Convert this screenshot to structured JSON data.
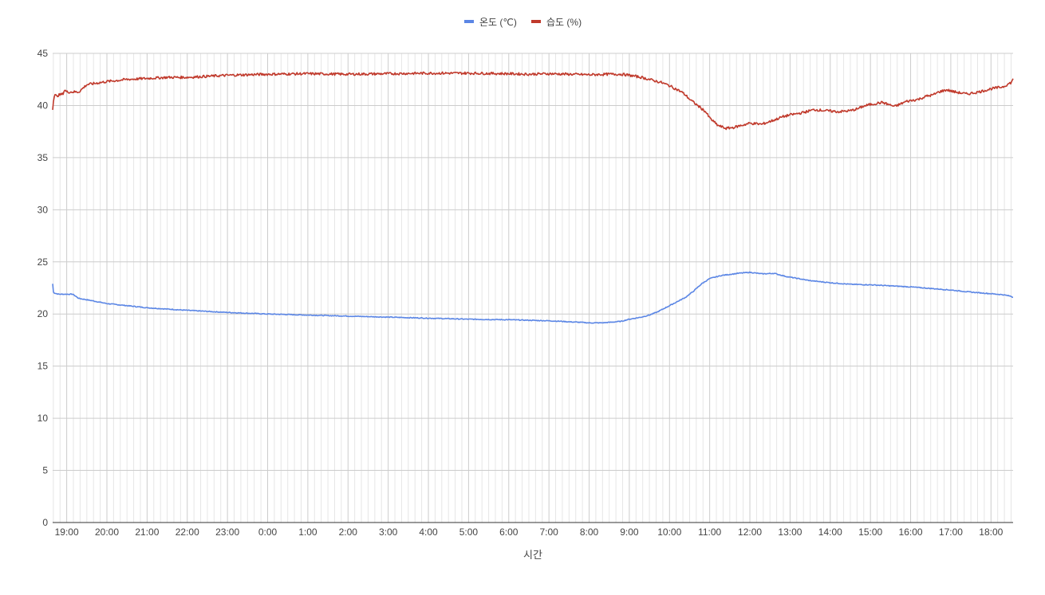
{
  "chart_data": {
    "type": "line",
    "title": "",
    "xlabel": "시간",
    "ylabel": "",
    "ylim": [
      0,
      45
    ],
    "yticks": [
      0,
      5,
      10,
      15,
      20,
      25,
      30,
      35,
      40,
      45
    ],
    "grid": true,
    "legend_position": "top",
    "x_tick_labels": [
      "19:00",
      "20:00",
      "21:00",
      "22:00",
      "23:00",
      "0:00",
      "1:00",
      "2:00",
      "3:00",
      "4:00",
      "5:00",
      "6:00",
      "7:00",
      "8:00",
      "9:00",
      "10:00",
      "11:00",
      "12:00",
      "13:00",
      "14:00",
      "15:00",
      "16:00",
      "17:00",
      "18:00"
    ],
    "x_range_hours": [
      -0.35,
      23.55
    ],
    "series": [
      {
        "name": "온도 (℃)",
        "color": "#5b86e5",
        "x": [
          -0.35,
          -0.33,
          -0.3,
          -0.2,
          -0.05,
          0.15,
          0.3,
          0.6,
          1.0,
          1.5,
          2.0,
          3.0,
          4.0,
          5.0,
          6.0,
          7.0,
          8.0,
          9.0,
          10.0,
          11.0,
          11.5,
          12.0,
          12.3,
          12.5,
          12.8,
          13.0,
          13.3,
          13.5,
          13.8,
          14.0,
          14.3,
          14.5,
          14.7,
          15.0,
          15.2,
          15.4,
          15.6,
          15.8,
          16.0,
          16.3,
          16.7,
          17.0,
          17.3,
          17.6,
          17.9,
          18.2,
          18.5,
          19.0,
          19.5,
          20.0,
          20.5,
          21.0,
          21.5,
          22.0,
          22.5,
          23.0,
          23.3,
          23.5,
          23.55
        ],
        "values": [
          22.9,
          22.1,
          22.0,
          21.9,
          21.9,
          21.9,
          21.5,
          21.3,
          21.0,
          20.8,
          20.6,
          20.35,
          20.15,
          20.0,
          19.9,
          19.8,
          19.7,
          19.6,
          19.5,
          19.45,
          19.4,
          19.35,
          19.3,
          19.25,
          19.2,
          19.15,
          19.15,
          19.2,
          19.3,
          19.5,
          19.7,
          19.9,
          20.2,
          20.8,
          21.2,
          21.6,
          22.2,
          22.9,
          23.4,
          23.7,
          23.9,
          24.0,
          23.85,
          23.9,
          23.6,
          23.4,
          23.2,
          23.0,
          22.85,
          22.8,
          22.7,
          22.6,
          22.45,
          22.3,
          22.1,
          21.95,
          21.85,
          21.7,
          21.6
        ]
      },
      {
        "name": "습도 (%)",
        "color": "#c0392b",
        "x": [
          -0.35,
          -0.33,
          -0.3,
          -0.25,
          -0.2,
          -0.1,
          -0.05,
          0.0,
          0.2,
          0.3,
          0.5,
          1.0,
          1.5,
          2.0,
          2.5,
          3.0,
          3.5,
          4.0,
          5.0,
          6.0,
          7.0,
          8.0,
          9.0,
          10.0,
          11.0,
          11.5,
          12.0,
          12.5,
          13.0,
          13.5,
          13.8,
          14.0,
          14.3,
          14.6,
          14.8,
          15.0,
          15.1,
          15.2,
          15.3,
          15.4,
          15.5,
          15.7,
          15.9,
          16.0,
          16.2,
          16.4,
          16.6,
          16.8,
          17.0,
          17.3,
          17.6,
          17.8,
          18.0,
          18.3,
          18.6,
          18.9,
          19.2,
          19.5,
          19.7,
          19.8,
          20.0,
          20.3,
          20.6,
          20.9,
          21.2,
          21.4,
          21.55,
          21.7,
          21.9,
          22.1,
          22.4,
          22.7,
          23.0,
          23.3,
          23.5,
          23.55
        ],
        "values": [
          39.7,
          40.5,
          41.0,
          40.9,
          41.0,
          41.1,
          41.5,
          41.3,
          41.3,
          41.3,
          42.0,
          42.3,
          42.5,
          42.6,
          42.7,
          42.7,
          42.8,
          42.9,
          43.0,
          43.05,
          43.0,
          43.05,
          43.1,
          43.1,
          43.05,
          43.0,
          43.05,
          43.0,
          42.95,
          43.0,
          43.0,
          42.9,
          42.7,
          42.4,
          42.2,
          41.9,
          41.7,
          41.5,
          41.3,
          41.0,
          40.6,
          40.0,
          39.4,
          38.8,
          38.1,
          37.8,
          37.9,
          38.1,
          38.3,
          38.2,
          38.6,
          38.9,
          39.1,
          39.3,
          39.6,
          39.5,
          39.4,
          39.5,
          39.7,
          39.9,
          40.1,
          40.3,
          39.9,
          40.4,
          40.6,
          40.9,
          41.0,
          41.3,
          41.5,
          41.3,
          41.1,
          41.3,
          41.6,
          41.8,
          42.2,
          42.5
        ]
      }
    ]
  }
}
